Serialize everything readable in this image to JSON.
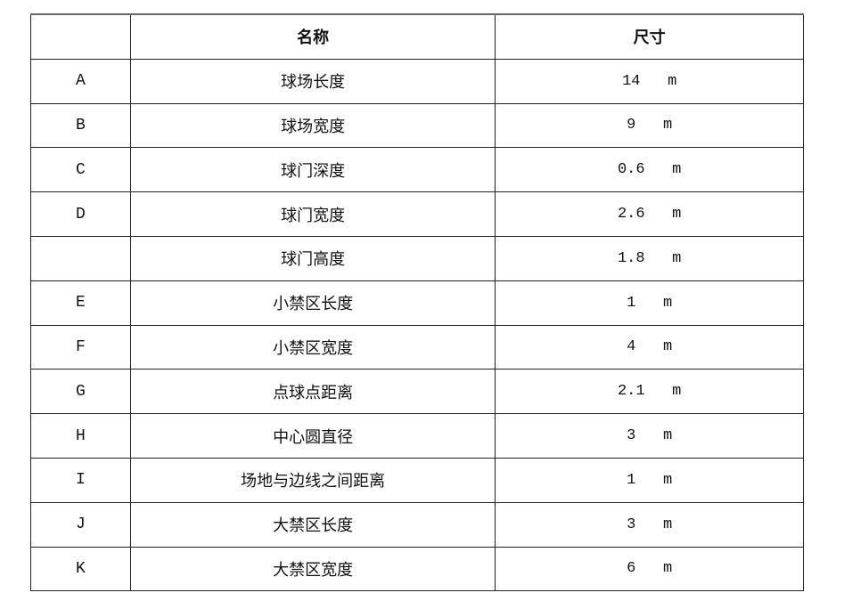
{
  "table": {
    "headers": [
      "",
      "名称",
      "尺寸"
    ],
    "rows": [
      {
        "label": "A",
        "name": "球场长度",
        "value": "14",
        "unit": "m"
      },
      {
        "label": "B",
        "name": "球场宽度",
        "value": "9",
        "unit": "m"
      },
      {
        "label": "C",
        "name": "球门深度",
        "value": "0.6",
        "unit": "m"
      },
      {
        "label": "D",
        "name": "球门宽度",
        "value": "2.6",
        "unit": "m"
      },
      {
        "label": "",
        "name": "球门高度",
        "value": "1.8",
        "unit": "m"
      },
      {
        "label": "E",
        "name": "小禁区长度",
        "value": "1",
        "unit": "m"
      },
      {
        "label": "F",
        "name": "小禁区宽度",
        "value": "4",
        "unit": "m"
      },
      {
        "label": "G",
        "name": "点球点距离",
        "value": "2.1",
        "unit": "m"
      },
      {
        "label": "H",
        "name": "中心圆直径",
        "value": "3",
        "unit": "m"
      },
      {
        "label": "I",
        "name": "场地与边线之间距离",
        "value": "1",
        "unit": "m"
      },
      {
        "label": "J",
        "name": "大禁区长度",
        "value": "3",
        "unit": "m"
      },
      {
        "label": "K",
        "name": "大禁区宽度",
        "value": "6",
        "unit": "m"
      }
    ]
  }
}
